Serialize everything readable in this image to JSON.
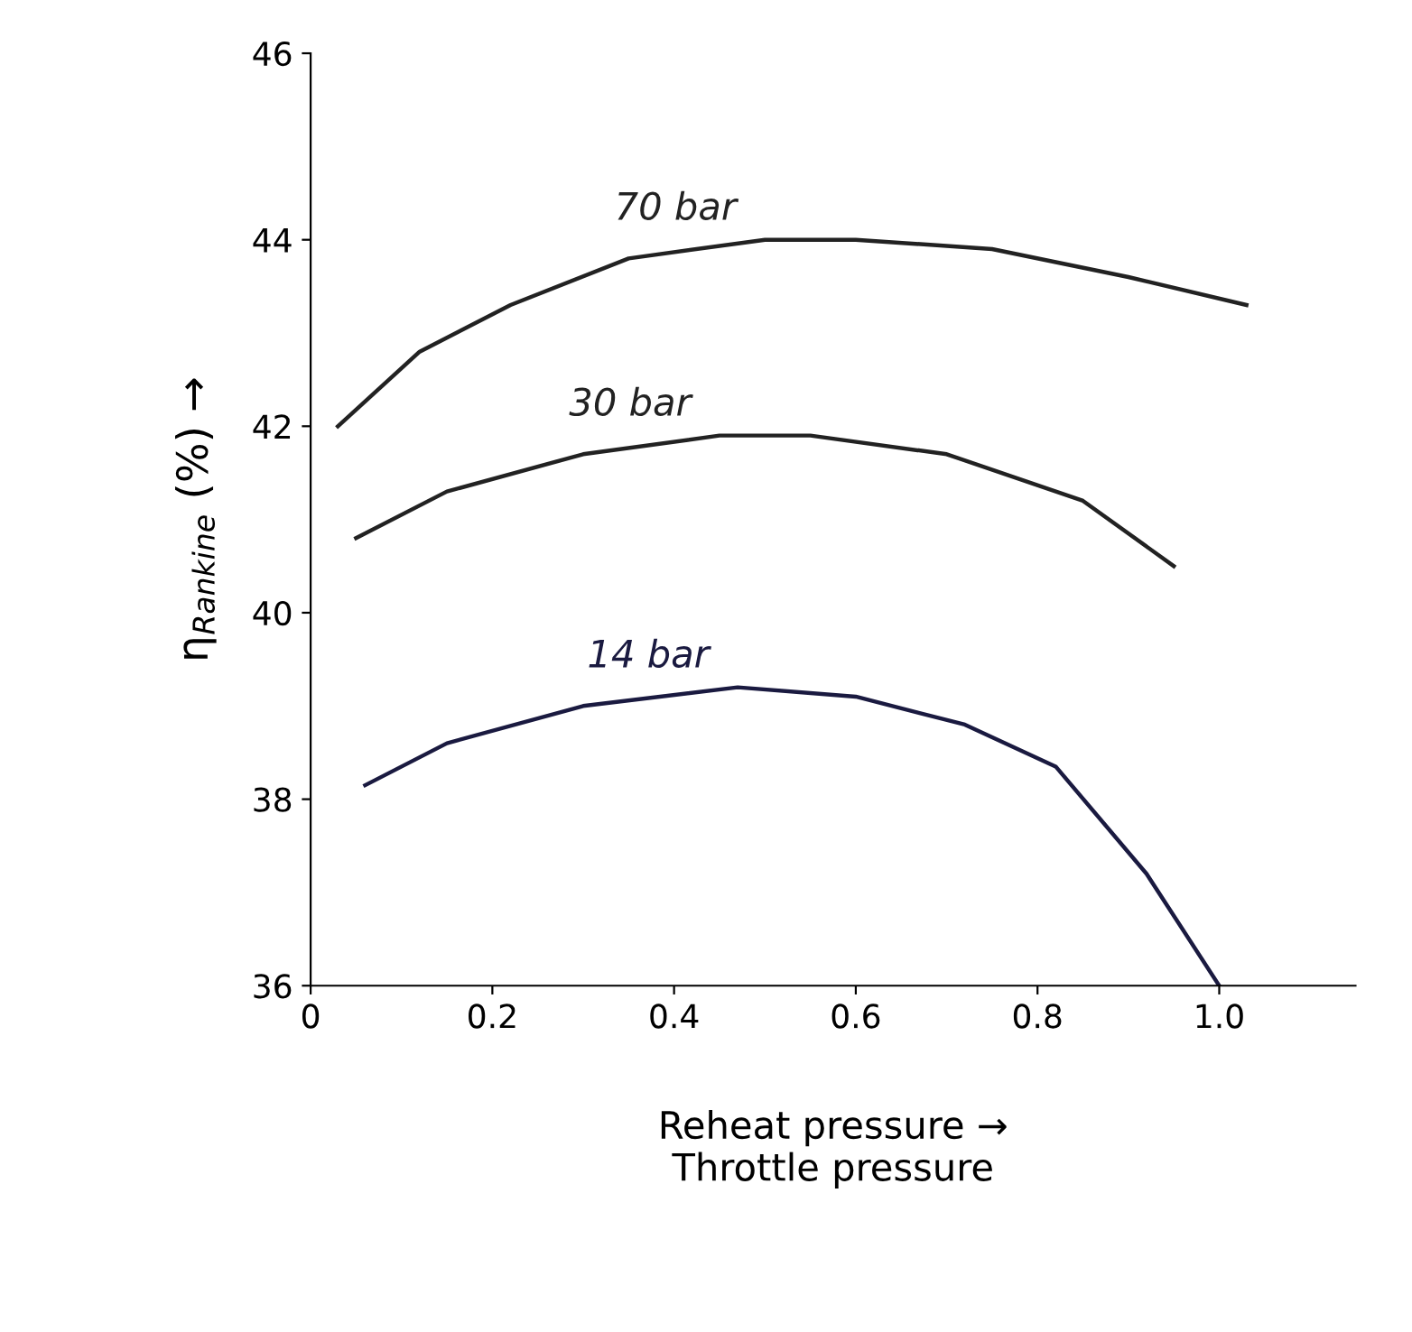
{
  "chart_data": {
    "type": "line",
    "xlabel": "Reheat pressure →\nThrottle pressure",
    "ylabel": "η$_{Rankine}$ (%) →",
    "xlim": [
      0,
      1.15
    ],
    "xticks": [
      {
        "value": 0,
        "label": "0"
      },
      0.2,
      0.4,
      0.6,
      0.8,
      {
        "value": 1.0,
        "label": "1.0"
      }
    ],
    "ylim": [
      36,
      46
    ],
    "yticks": [
      36,
      38,
      40,
      42,
      44,
      46
    ],
    "grid": false,
    "legend": false,
    "marker": "none",
    "line_style": "solid",
    "series": [
      {
        "name": "70 bar",
        "color": "#222222",
        "x": [
          0.03,
          0.12,
          0.22,
          0.35,
          0.5,
          0.6,
          0.75,
          0.9,
          1.03
        ],
        "values": [
          42.0,
          42.8,
          43.3,
          43.8,
          44.0,
          44.0,
          43.9,
          43.6,
          43.3
        ]
      },
      {
        "name": "30 bar",
        "color": "#222222",
        "x": [
          0.05,
          0.15,
          0.3,
          0.45,
          0.55,
          0.7,
          0.85,
          0.95
        ],
        "values": [
          40.8,
          41.3,
          41.7,
          41.9,
          41.9,
          41.7,
          41.2,
          40.5
        ]
      },
      {
        "name": "14 bar",
        "color": "#1a1a40",
        "x": [
          0.06,
          0.15,
          0.3,
          0.47,
          0.6,
          0.72,
          0.82,
          0.92,
          1.0
        ],
        "values": [
          38.15,
          38.6,
          39.0,
          39.2,
          39.1,
          38.8,
          38.35,
          37.2,
          36.0
        ]
      }
    ]
  }
}
